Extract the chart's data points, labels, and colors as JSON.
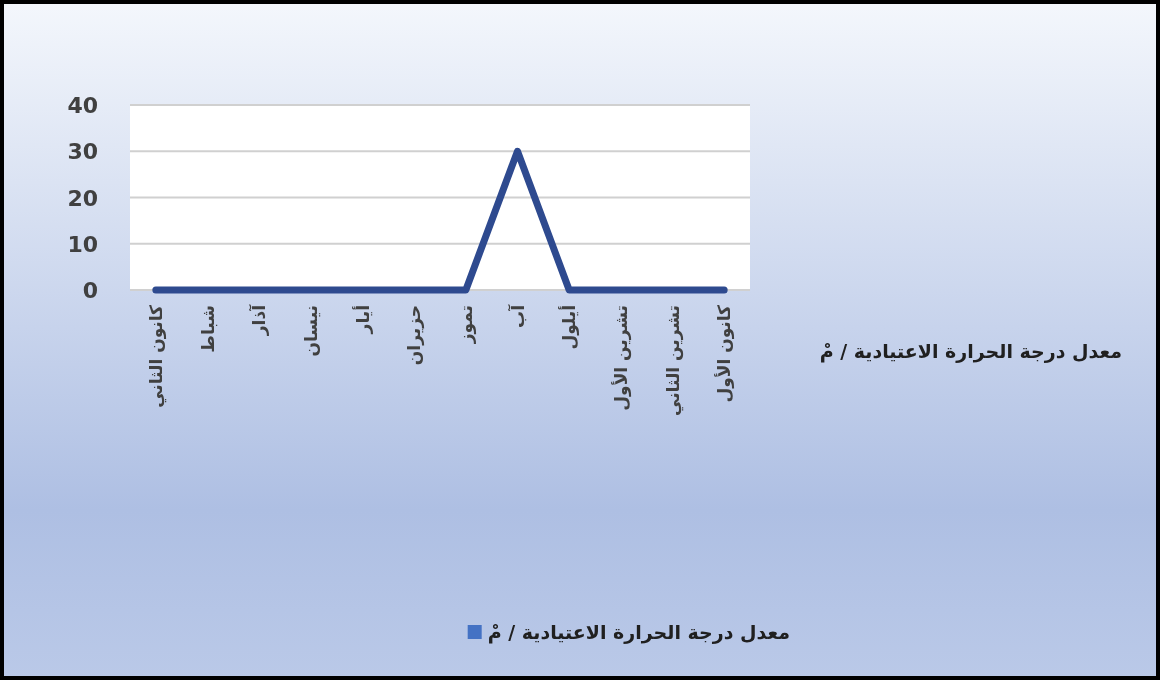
{
  "chart_data": {
    "type": "line",
    "categories": [
      "كانون الثاني",
      "شباط",
      "آذار",
      "نيسان",
      "أيار",
      "حزيران",
      "تموز",
      "آب",
      "أيلول",
      "تشرين الأول",
      "تشرين الثاني",
      "كانون الأول"
    ],
    "series": [
      {
        "name": "معدل  درجة الحرارة الاعتيادية / مْ",
        "color": "#2e4a8f",
        "values": [
          0,
          0,
          0,
          0,
          0,
          0,
          0,
          30,
          0,
          0,
          0,
          0
        ]
      }
    ],
    "annotations": [
      "معدل  درجة الحرارة الاعتيادية / مْ"
    ],
    "ylim": [
      0,
      40
    ],
    "yticks": [
      0,
      10,
      20,
      30,
      40
    ],
    "grid": "y",
    "legend": "bottom",
    "marker": "none"
  }
}
